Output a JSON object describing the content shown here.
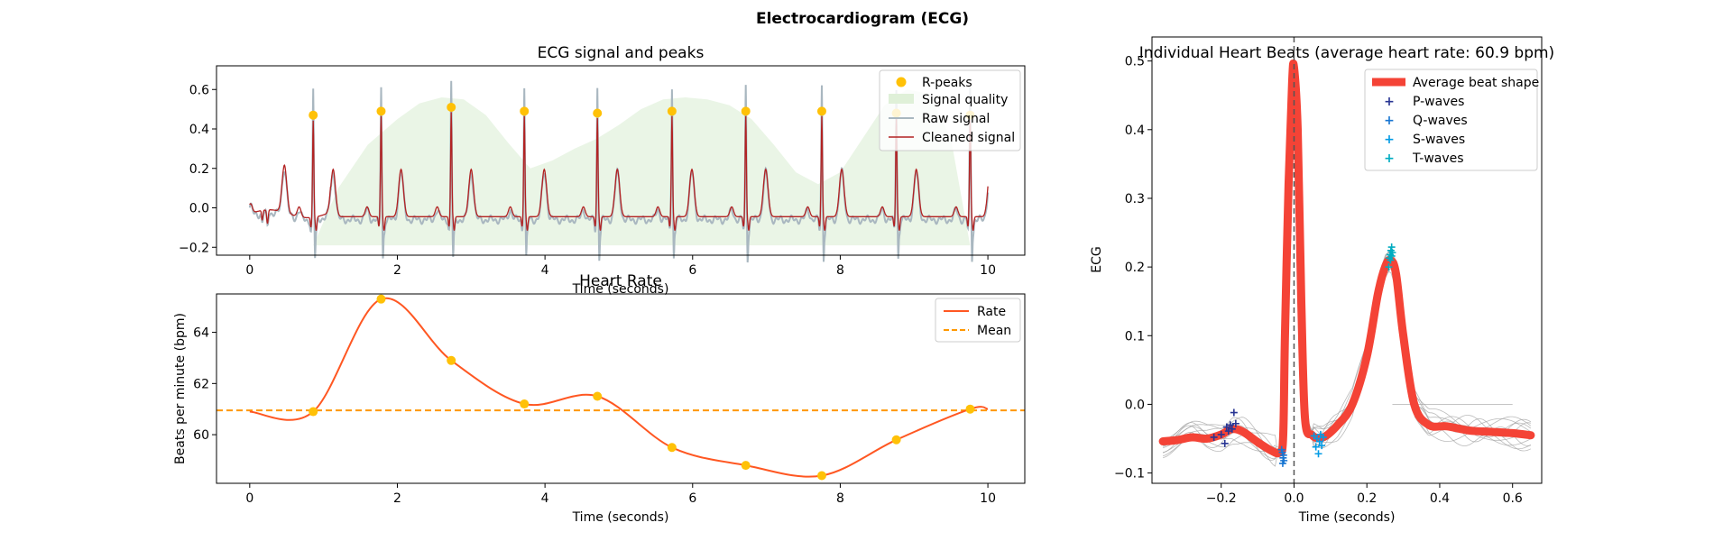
{
  "figure": {
    "title": "Electrocardiogram (ECG)"
  },
  "chart_data": [
    {
      "type": "line",
      "title": "ECG signal and peaks",
      "xlabel": "Time (seconds)",
      "ylabel": "",
      "xlim": [
        -0.45,
        10.5
      ],
      "ylim": [
        -0.24,
        0.72
      ],
      "xticks": [
        0,
        2,
        4,
        6,
        8,
        10
      ],
      "yticks": [
        -0.2,
        0.0,
        0.2,
        0.4,
        0.6
      ],
      "ytick_labels": [
        "−0.2",
        "0.0",
        "0.2",
        "0.4",
        "0.6"
      ],
      "grid": false,
      "legend": "top-right",
      "r_peaks": {
        "name": "R-peaks",
        "color": "#FFC107",
        "x": [
          0.86,
          1.78,
          2.73,
          3.72,
          4.71,
          5.72,
          6.72,
          7.75,
          8.76,
          9.76
        ],
        "y": [
          0.47,
          0.49,
          0.51,
          0.49,
          0.48,
          0.49,
          0.49,
          0.49,
          0.48,
          0.47
        ]
      },
      "signal_quality": {
        "name": "Signal quality",
        "color": "#DFF0D8",
        "baseline": -0.19,
        "x": [
          0.86,
          1.2,
          1.6,
          2.0,
          2.3,
          2.6,
          2.9,
          3.2,
          3.5,
          3.8,
          4.1,
          4.4,
          4.7,
          5.0,
          5.3,
          5.6,
          5.9,
          6.2,
          6.5,
          6.8,
          7.1,
          7.4,
          7.7,
          8.0,
          8.3,
          8.6,
          8.9,
          9.2,
          9.5,
          9.76
        ],
        "y": [
          -0.19,
          0.1,
          0.32,
          0.45,
          0.53,
          0.56,
          0.55,
          0.47,
          0.33,
          0.2,
          0.24,
          0.3,
          0.35,
          0.42,
          0.5,
          0.55,
          0.56,
          0.55,
          0.52,
          0.45,
          0.32,
          0.18,
          0.12,
          0.18,
          0.35,
          0.52,
          0.6,
          0.58,
          0.35,
          -0.19
        ]
      },
      "raw_signal": {
        "name": "Raw signal",
        "color": "#A9B7C0"
      },
      "cleaned_signal": {
        "name": "Cleaned signal",
        "color": "#B22222"
      }
    },
    {
      "type": "line",
      "title": "Heart Rate",
      "xlabel": "Time (seconds)",
      "ylabel": "Beats per minute (bpm)",
      "xlim": [
        -0.45,
        10.5
      ],
      "ylim": [
        58.1,
        65.5
      ],
      "xticks": [
        0,
        2,
        4,
        6,
        8,
        10
      ],
      "yticks": [
        60,
        62,
        64
      ],
      "grid": false,
      "legend": "top-right",
      "rate": {
        "name": "Rate",
        "color": "#FF5722",
        "x": [
          0,
          0.86,
          1.78,
          2.73,
          3.72,
          4.71,
          5.72,
          6.72,
          7.75,
          8.76,
          9.76,
          10.0
        ],
        "y": [
          60.9,
          60.9,
          65.3,
          62.9,
          61.2,
          61.5,
          59.5,
          58.8,
          58.4,
          59.8,
          61.0,
          61.0
        ]
      },
      "peak_points": {
        "color": "#FFC107",
        "x": [
          0.86,
          1.78,
          2.73,
          3.72,
          4.71,
          5.72,
          6.72,
          7.75,
          8.76,
          9.76
        ],
        "y": [
          60.9,
          65.3,
          62.9,
          61.2,
          61.5,
          59.5,
          58.8,
          58.4,
          59.8,
          61.0
        ]
      },
      "mean": {
        "name": "Mean",
        "color": "#FF9800",
        "value": 60.95
      }
    },
    {
      "type": "line",
      "title": "Individual Heart Beats (average heart rate: 60.9 bpm)",
      "xlabel": "Time (seconds)",
      "ylabel": "ECG",
      "xlim": [
        -0.39,
        0.68
      ],
      "ylim": [
        -0.115,
        0.535
      ],
      "xticks": [
        -0.2,
        0.0,
        0.2,
        0.4,
        0.6
      ],
      "xtick_labels": [
        "−0.2",
        "0.0",
        "0.2",
        "0.4",
        "0.6"
      ],
      "yticks": [
        -0.1,
        0.0,
        0.1,
        0.2,
        0.3,
        0.4,
        0.5
      ],
      "ytick_labels": [
        "−0.1",
        "0.0",
        "0.1",
        "0.2",
        "0.3",
        "0.4",
        "0.5"
      ],
      "grid": false,
      "legend": "top-right",
      "vline_x": 0.0,
      "average_beat": {
        "name": "Average beat shape",
        "color": "#F44336",
        "x": [
          -0.36,
          -0.32,
          -0.28,
          -0.24,
          -0.2,
          -0.17,
          -0.14,
          -0.1,
          -0.06,
          -0.04,
          -0.03,
          -0.025,
          -0.015,
          -0.005,
          0.0,
          0.01,
          0.02,
          0.03,
          0.05,
          0.08,
          0.12,
          0.16,
          0.2,
          0.23,
          0.25,
          0.265,
          0.28,
          0.3,
          0.33,
          0.37,
          0.42,
          0.48,
          0.54,
          0.6,
          0.65
        ],
        "y": [
          -0.054,
          -0.052,
          -0.048,
          -0.05,
          -0.044,
          -0.036,
          -0.04,
          -0.055,
          -0.068,
          -0.07,
          -0.05,
          0.1,
          0.32,
          0.47,
          0.49,
          0.4,
          0.15,
          -0.02,
          -0.045,
          -0.048,
          -0.03,
          0.0,
          0.07,
          0.16,
          0.2,
          0.21,
          0.19,
          0.1,
          0.0,
          -0.03,
          -0.032,
          -0.038,
          -0.04,
          -0.042,
          -0.045
        ]
      },
      "p_waves": {
        "name": "P-waves",
        "color": "#283593",
        "x": [
          -0.22,
          -0.2,
          -0.19,
          -0.185,
          -0.18,
          -0.175,
          -0.17,
          -0.165,
          -0.16
        ],
        "y": [
          -0.048,
          -0.044,
          -0.057,
          -0.033,
          -0.039,
          -0.03,
          -0.036,
          -0.012,
          -0.028
        ]
      },
      "q_waves": {
        "name": "Q-waves",
        "color": "#1976D2",
        "x": [
          -0.034,
          -0.032,
          -0.031,
          -0.03,
          -0.029,
          -0.028
        ],
        "y": [
          -0.066,
          -0.07,
          -0.086,
          -0.078,
          -0.074,
          -0.082
        ]
      },
      "s_waves": {
        "name": "S-waves",
        "color": "#039BE5",
        "x": [
          0.055,
          0.06,
          0.063,
          0.067,
          0.07,
          0.073,
          0.076,
          0.08
        ],
        "y": [
          -0.046,
          -0.062,
          -0.05,
          -0.072,
          -0.054,
          -0.044,
          -0.06,
          -0.048
        ]
      },
      "t_waves": {
        "name": "T-waves",
        "color": "#00ACC1",
        "x": [
          0.26,
          0.262,
          0.264,
          0.266,
          0.268,
          0.27,
          0.268,
          0.265
        ],
        "y": [
          0.2,
          0.213,
          0.218,
          0.224,
          0.229,
          0.221,
          0.216,
          0.21
        ]
      }
    }
  ]
}
